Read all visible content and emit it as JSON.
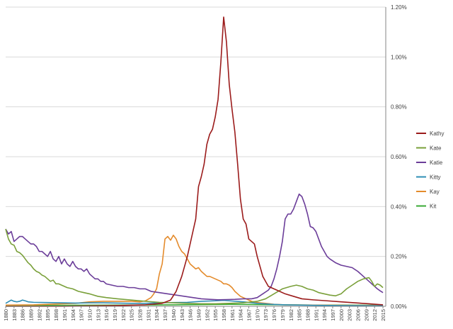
{
  "chart_data": {
    "type": "line",
    "title": "",
    "xlabel": "",
    "ylabel": "",
    "xlim": [
      1880,
      2016
    ],
    "ylim": [
      0,
      1.2
    ],
    "y_axis_position": "right",
    "y_ticks": [
      "0.00%",
      "0.20%",
      "0.40%",
      "0.60%",
      "0.80%",
      "1.00%",
      "1.20%"
    ],
    "y_tick_values": [
      0,
      0.2,
      0.4,
      0.6,
      0.8,
      1.0,
      1.2
    ],
    "x_tick_labels": [
      "1880",
      "1883",
      "1886",
      "1889",
      "1892",
      "1895",
      "1898",
      "1901",
      "1904",
      "1907",
      "1910",
      "1913",
      "1916",
      "1919",
      "1922",
      "1925",
      "1928",
      "1931",
      "1934",
      "1937",
      "1940",
      "1943",
      "1946",
      "1949",
      "1952",
      "1955",
      "1958",
      "1961",
      "1964",
      "1967",
      "1970",
      "1973",
      "1976",
      "1979",
      "1982",
      "1985",
      "1988",
      "1991",
      "1994",
      "1997",
      "2000",
      "2003",
      "2006",
      "2009",
      "2012",
      "2015"
    ],
    "grid": "horizontal",
    "legend_position": "right",
    "series": [
      {
        "name": "Kathy",
        "color": "#9b1b1b",
        "points": [
          [
            1880,
            0
          ],
          [
            1900,
            0
          ],
          [
            1920,
            0.003
          ],
          [
            1930,
            0.006
          ],
          [
            1936,
            0.012
          ],
          [
            1939,
            0.025
          ],
          [
            1941,
            0.06
          ],
          [
            1943,
            0.12
          ],
          [
            1945,
            0.2
          ],
          [
            1947,
            0.3
          ],
          [
            1948,
            0.35
          ],
          [
            1949,
            0.48
          ],
          [
            1950,
            0.52
          ],
          [
            1951,
            0.57
          ],
          [
            1952,
            0.65
          ],
          [
            1953,
            0.69
          ],
          [
            1954,
            0.71
          ],
          [
            1955,
            0.76
          ],
          [
            1956,
            0.83
          ],
          [
            1957,
            0.98
          ],
          [
            1958,
            1.16
          ],
          [
            1959,
            1.06
          ],
          [
            1960,
            0.89
          ],
          [
            1961,
            0.79
          ],
          [
            1962,
            0.7
          ],
          [
            1963,
            0.57
          ],
          [
            1964,
            0.43
          ],
          [
            1965,
            0.35
          ],
          [
            1966,
            0.33
          ],
          [
            1967,
            0.27
          ],
          [
            1968,
            0.26
          ],
          [
            1969,
            0.25
          ],
          [
            1970,
            0.2
          ],
          [
            1971,
            0.16
          ],
          [
            1972,
            0.12
          ],
          [
            1973,
            0.1
          ],
          [
            1974,
            0.08
          ],
          [
            1976,
            0.07
          ],
          [
            1978,
            0.06
          ],
          [
            1980,
            0.05
          ],
          [
            1983,
            0.04
          ],
          [
            1986,
            0.03
          ],
          [
            1990,
            0.026
          ],
          [
            1995,
            0.022
          ],
          [
            2000,
            0.018
          ],
          [
            2005,
            0.014
          ],
          [
            2010,
            0.01
          ],
          [
            2015,
            0.006
          ]
        ]
      },
      {
        "name": "Kate",
        "color": "#7aa03a",
        "points": [
          [
            1880,
            0.31
          ],
          [
            1881,
            0.27
          ],
          [
            1882,
            0.25
          ],
          [
            1883,
            0.245
          ],
          [
            1884,
            0.22
          ],
          [
            1885,
            0.215
          ],
          [
            1886,
            0.205
          ],
          [
            1887,
            0.19
          ],
          [
            1888,
            0.175
          ],
          [
            1889,
            0.165
          ],
          [
            1890,
            0.15
          ],
          [
            1891,
            0.14
          ],
          [
            1892,
            0.135
          ],
          [
            1893,
            0.125
          ],
          [
            1894,
            0.12
          ],
          [
            1895,
            0.11
          ],
          [
            1896,
            0.1
          ],
          [
            1897,
            0.105
          ],
          [
            1898,
            0.09
          ],
          [
            1899,
            0.09
          ],
          [
            1900,
            0.085
          ],
          [
            1902,
            0.075
          ],
          [
            1904,
            0.07
          ],
          [
            1906,
            0.06
          ],
          [
            1908,
            0.055
          ],
          [
            1910,
            0.05
          ],
          [
            1913,
            0.04
          ],
          [
            1916,
            0.035
          ],
          [
            1920,
            0.03
          ],
          [
            1925,
            0.025
          ],
          [
            1930,
            0.02
          ],
          [
            1935,
            0.016
          ],
          [
            1940,
            0.014
          ],
          [
            1945,
            0.012
          ],
          [
            1950,
            0.01
          ],
          [
            1955,
            0.01
          ],
          [
            1960,
            0.012
          ],
          [
            1965,
            0.014
          ],
          [
            1970,
            0.02
          ],
          [
            1973,
            0.03
          ],
          [
            1976,
            0.05
          ],
          [
            1979,
            0.07
          ],
          [
            1982,
            0.08
          ],
          [
            1984,
            0.085
          ],
          [
            1986,
            0.08
          ],
          [
            1988,
            0.07
          ],
          [
            1990,
            0.065
          ],
          [
            1992,
            0.055
          ],
          [
            1994,
            0.05
          ],
          [
            1996,
            0.045
          ],
          [
            1998,
            0.042
          ],
          [
            2000,
            0.05
          ],
          [
            2002,
            0.07
          ],
          [
            2004,
            0.085
          ],
          [
            2006,
            0.1
          ],
          [
            2008,
            0.11
          ],
          [
            2010,
            0.115
          ],
          [
            2011,
            0.1
          ],
          [
            2012,
            0.08
          ],
          [
            2013,
            0.09
          ],
          [
            2014,
            0.085
          ],
          [
            2015,
            0.075
          ]
        ]
      },
      {
        "name": "Katie",
        "color": "#6b3d99",
        "points": [
          [
            1880,
            0.31
          ],
          [
            1881,
            0.29
          ],
          [
            1882,
            0.3
          ],
          [
            1883,
            0.26
          ],
          [
            1884,
            0.27
          ],
          [
            1885,
            0.28
          ],
          [
            1886,
            0.28
          ],
          [
            1887,
            0.27
          ],
          [
            1888,
            0.26
          ],
          [
            1889,
            0.25
          ],
          [
            1890,
            0.25
          ],
          [
            1891,
            0.24
          ],
          [
            1892,
            0.22
          ],
          [
            1893,
            0.22
          ],
          [
            1894,
            0.21
          ],
          [
            1895,
            0.2
          ],
          [
            1896,
            0.22
          ],
          [
            1897,
            0.19
          ],
          [
            1898,
            0.18
          ],
          [
            1899,
            0.2
          ],
          [
            1900,
            0.17
          ],
          [
            1901,
            0.19
          ],
          [
            1902,
            0.17
          ],
          [
            1903,
            0.16
          ],
          [
            1904,
            0.18
          ],
          [
            1905,
            0.16
          ],
          [
            1906,
            0.15
          ],
          [
            1907,
            0.15
          ],
          [
            1908,
            0.14
          ],
          [
            1909,
            0.15
          ],
          [
            1910,
            0.13
          ],
          [
            1911,
            0.12
          ],
          [
            1912,
            0.11
          ],
          [
            1913,
            0.11
          ],
          [
            1914,
            0.1
          ],
          [
            1915,
            0.1
          ],
          [
            1916,
            0.09
          ],
          [
            1918,
            0.085
          ],
          [
            1920,
            0.08
          ],
          [
            1922,
            0.08
          ],
          [
            1924,
            0.075
          ],
          [
            1926,
            0.075
          ],
          [
            1928,
            0.07
          ],
          [
            1930,
            0.07
          ],
          [
            1932,
            0.06
          ],
          [
            1935,
            0.055
          ],
          [
            1938,
            0.05
          ],
          [
            1941,
            0.045
          ],
          [
            1944,
            0.04
          ],
          [
            1947,
            0.035
          ],
          [
            1950,
            0.03
          ],
          [
            1953,
            0.028
          ],
          [
            1956,
            0.026
          ],
          [
            1959,
            0.027
          ],
          [
            1962,
            0.028
          ],
          [
            1965,
            0.03
          ],
          [
            1968,
            0.03
          ],
          [
            1970,
            0.035
          ],
          [
            1972,
            0.05
          ],
          [
            1974,
            0.065
          ],
          [
            1975,
            0.08
          ],
          [
            1976,
            0.11
          ],
          [
            1977,
            0.15
          ],
          [
            1978,
            0.2
          ],
          [
            1979,
            0.26
          ],
          [
            1980,
            0.35
          ],
          [
            1981,
            0.37
          ],
          [
            1982,
            0.37
          ],
          [
            1983,
            0.39
          ],
          [
            1984,
            0.42
          ],
          [
            1985,
            0.45
          ],
          [
            1986,
            0.44
          ],
          [
            1987,
            0.41
          ],
          [
            1988,
            0.37
          ],
          [
            1989,
            0.32
          ],
          [
            1990,
            0.315
          ],
          [
            1991,
            0.3
          ],
          [
            1992,
            0.27
          ],
          [
            1993,
            0.24
          ],
          [
            1994,
            0.22
          ],
          [
            1995,
            0.2
          ],
          [
            1996,
            0.19
          ],
          [
            1998,
            0.175
          ],
          [
            2000,
            0.165
          ],
          [
            2002,
            0.16
          ],
          [
            2004,
            0.155
          ],
          [
            2006,
            0.14
          ],
          [
            2008,
            0.12
          ],
          [
            2010,
            0.1
          ],
          [
            2012,
            0.08
          ],
          [
            2013,
            0.07
          ],
          [
            2014,
            0.062
          ],
          [
            2015,
            0.055
          ]
        ]
      },
      {
        "name": "Kitty",
        "color": "#2f8fb5",
        "points": [
          [
            1880,
            0.012
          ],
          [
            1882,
            0.025
          ],
          [
            1883,
            0.02
          ],
          [
            1884,
            0.018
          ],
          [
            1885,
            0.02
          ],
          [
            1886,
            0.025
          ],
          [
            1887,
            0.022
          ],
          [
            1888,
            0.018
          ],
          [
            1890,
            0.016
          ],
          [
            1895,
            0.015
          ],
          [
            1900,
            0.014
          ],
          [
            1905,
            0.013
          ],
          [
            1910,
            0.014
          ],
          [
            1915,
            0.014
          ],
          [
            1920,
            0.013
          ],
          [
            1925,
            0.012
          ],
          [
            1930,
            0.012
          ],
          [
            1935,
            0.014
          ],
          [
            1940,
            0.015
          ],
          [
            1945,
            0.016
          ],
          [
            1950,
            0.02
          ],
          [
            1955,
            0.022
          ],
          [
            1958,
            0.024
          ],
          [
            1960,
            0.022
          ],
          [
            1965,
            0.018
          ],
          [
            1970,
            0.012
          ],
          [
            1975,
            0.008
          ],
          [
            1980,
            0.006
          ],
          [
            1990,
            0.004
          ],
          [
            2000,
            0.003
          ],
          [
            2015,
            0.002
          ]
        ]
      },
      {
        "name": "Kay",
        "color": "#e48b2c",
        "points": [
          [
            1880,
            0.005
          ],
          [
            1890,
            0.006
          ],
          [
            1900,
            0.01
          ],
          [
            1905,
            0.012
          ],
          [
            1910,
            0.018
          ],
          [
            1915,
            0.02
          ],
          [
            1920,
            0.02
          ],
          [
            1925,
            0.02
          ],
          [
            1928,
            0.018
          ],
          [
            1930,
            0.022
          ],
          [
            1932,
            0.035
          ],
          [
            1933,
            0.05
          ],
          [
            1934,
            0.07
          ],
          [
            1935,
            0.13
          ],
          [
            1936,
            0.17
          ],
          [
            1937,
            0.27
          ],
          [
            1938,
            0.28
          ],
          [
            1939,
            0.265
          ],
          [
            1940,
            0.285
          ],
          [
            1941,
            0.27
          ],
          [
            1942,
            0.24
          ],
          [
            1943,
            0.22
          ],
          [
            1944,
            0.21
          ],
          [
            1945,
            0.19
          ],
          [
            1946,
            0.17
          ],
          [
            1947,
            0.16
          ],
          [
            1948,
            0.15
          ],
          [
            1949,
            0.155
          ],
          [
            1950,
            0.14
          ],
          [
            1951,
            0.13
          ],
          [
            1952,
            0.12
          ],
          [
            1953,
            0.12
          ],
          [
            1954,
            0.115
          ],
          [
            1955,
            0.11
          ],
          [
            1956,
            0.105
          ],
          [
            1957,
            0.1
          ],
          [
            1958,
            0.09
          ],
          [
            1959,
            0.09
          ],
          [
            1960,
            0.085
          ],
          [
            1961,
            0.075
          ],
          [
            1962,
            0.06
          ],
          [
            1963,
            0.05
          ],
          [
            1964,
            0.04
          ],
          [
            1965,
            0.035
          ],
          [
            1966,
            0.03
          ],
          [
            1967,
            0.025
          ],
          [
            1968,
            0.02
          ],
          [
            1970,
            0.015
          ],
          [
            1973,
            0.012
          ],
          [
            1976,
            0.008
          ],
          [
            1980,
            0.006
          ],
          [
            1990,
            0.005
          ],
          [
            2000,
            0.004
          ],
          [
            2015,
            0.003
          ]
        ]
      },
      {
        "name": "Kit",
        "color": "#3aaa35",
        "points": [
          [
            1880,
            0.003
          ],
          [
            1900,
            0.004
          ],
          [
            1920,
            0.005
          ],
          [
            1940,
            0.006
          ],
          [
            1950,
            0.007
          ],
          [
            1960,
            0.008
          ],
          [
            1970,
            0.007
          ],
          [
            1980,
            0.006
          ],
          [
            1990,
            0.005
          ],
          [
            2000,
            0.005
          ],
          [
            2015,
            0.004
          ]
        ]
      }
    ]
  }
}
